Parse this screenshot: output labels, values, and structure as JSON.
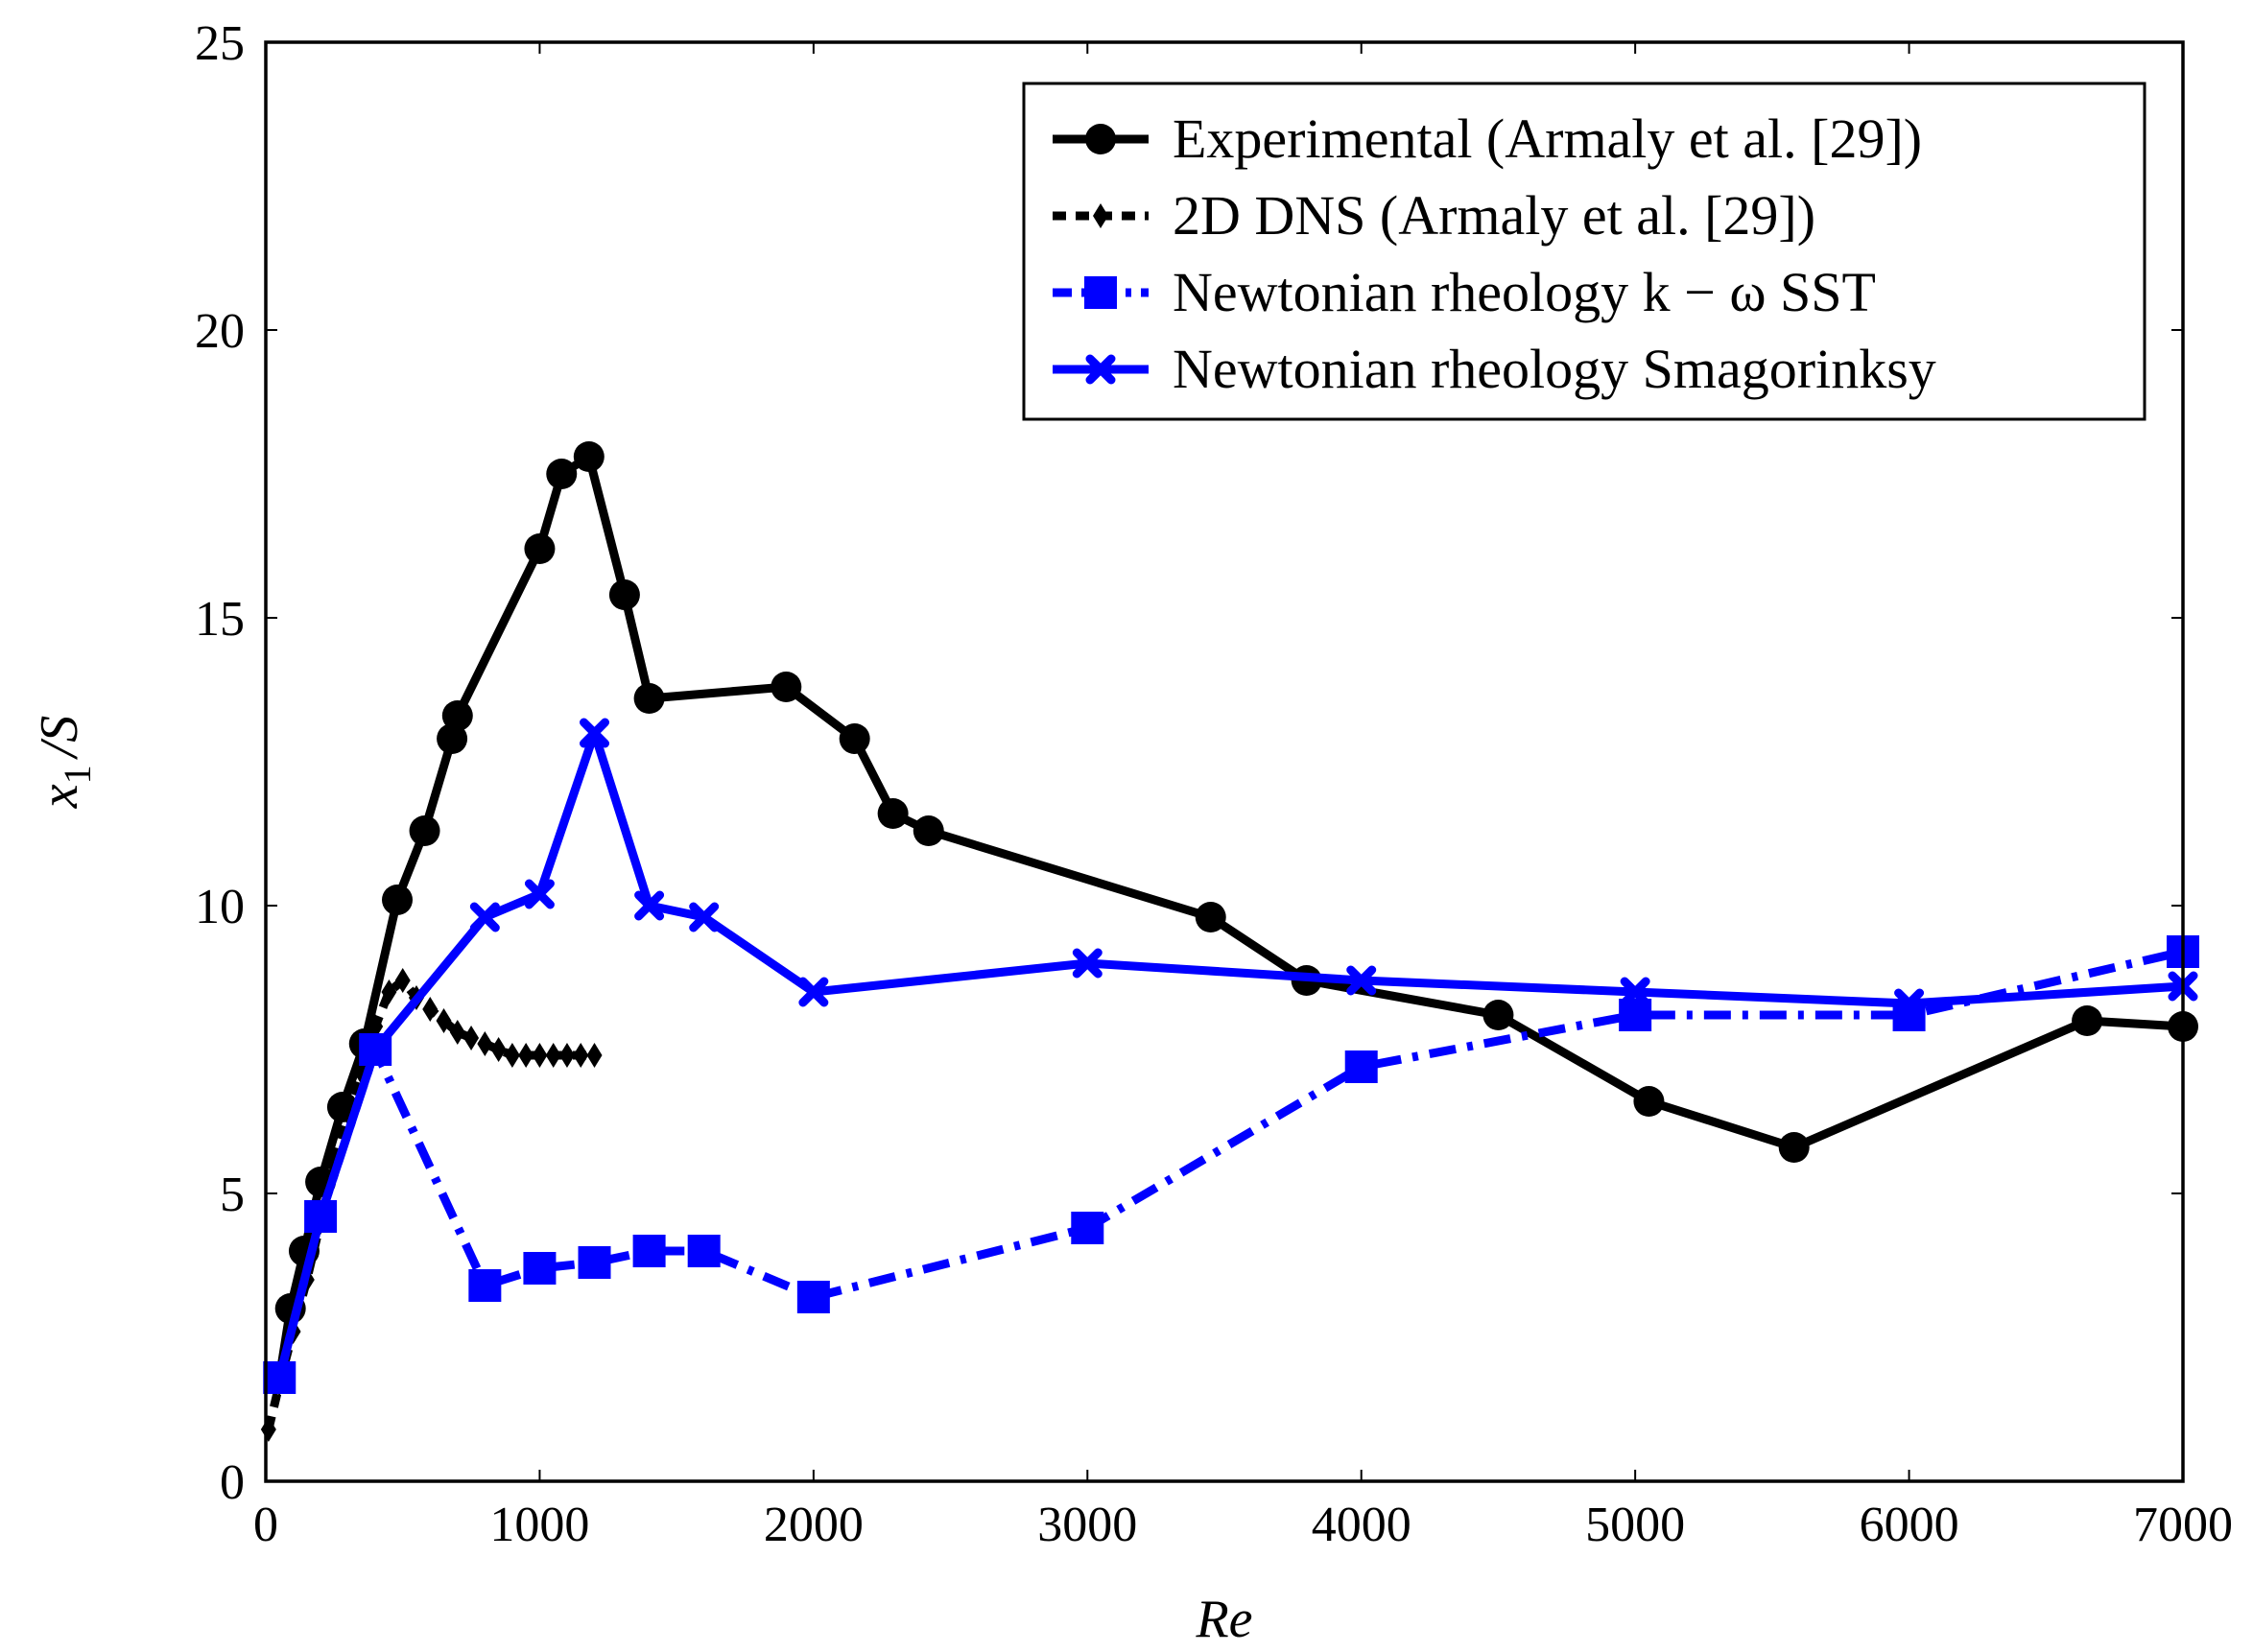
{
  "chart_data": {
    "type": "line",
    "title": "",
    "xlabel": "Re",
    "ylabel_main": "x",
    "ylabel_sub": "1",
    "ylabel_rest": "/S",
    "xlim": [
      0,
      7000
    ],
    "ylim": [
      0,
      25
    ],
    "xticks": [
      "0",
      "1000",
      "2000",
      "3000",
      "4000",
      "5000",
      "6000",
      "7000"
    ],
    "yticks": [
      "0",
      "5",
      "10",
      "15",
      "20",
      "25"
    ],
    "grid": false,
    "legend_position": "top-right",
    "series": [
      {
        "name": "Experimental (Armaly et al. [29])",
        "color": "#000000",
        "line": "solid",
        "marker": "circle",
        "x": [
          50,
          90,
          140,
          200,
          280,
          360,
          480,
          580,
          680,
          700,
          1000,
          1080,
          1180,
          1310,
          1400,
          1900,
          2150,
          2290,
          2420,
          3450,
          3800,
          4500,
          5050,
          5580,
          6650,
          7000
        ],
        "y": [
          1.8,
          3.0,
          4.0,
          5.2,
          6.5,
          7.6,
          10.1,
          11.3,
          12.9,
          13.3,
          16.2,
          17.5,
          17.8,
          15.4,
          13.6,
          13.8,
          12.9,
          11.6,
          11.3,
          9.8,
          8.7,
          8.1,
          6.6,
          5.8,
          8.0,
          7.9
        ]
      },
      {
        "name": "2D DNS (Armaly et al. [29])",
        "color": "#000000",
        "line": "dashed",
        "marker": "diamond",
        "x": [
          10,
          50,
          100,
          150,
          200,
          250,
          300,
          350,
          400,
          450,
          500,
          550,
          600,
          650,
          700,
          750,
          800,
          850,
          900,
          950,
          1000,
          1050,
          1100,
          1150,
          1200
        ],
        "y": [
          0.9,
          1.7,
          2.6,
          3.5,
          4.5,
          5.5,
          6.4,
          7.1,
          7.9,
          8.5,
          8.7,
          8.4,
          8.2,
          8.0,
          7.8,
          7.7,
          7.6,
          7.5,
          7.4,
          7.4,
          7.4,
          7.4,
          7.4,
          7.4,
          7.4
        ]
      },
      {
        "name": "Newtonian rheology k − ω SST",
        "color": "#0000ff",
        "line": "dash-dot",
        "marker": "square",
        "x": [
          50,
          200,
          400,
          800,
          1000,
          1200,
          1400,
          1600,
          2000,
          3000,
          4000,
          5000,
          6000,
          7000
        ],
        "y": [
          1.8,
          4.6,
          7.5,
          3.4,
          3.7,
          3.8,
          4.0,
          4.0,
          3.2,
          4.4,
          7.2,
          8.1,
          8.1,
          9.2
        ]
      },
      {
        "name": "Newtonian rheology Smagorinksy",
        "color": "#0000ff",
        "line": "solid",
        "marker": "cross",
        "x": [
          50,
          200,
          400,
          800,
          1000,
          1200,
          1400,
          1600,
          2000,
          3000,
          4000,
          5000,
          6000,
          7000
        ],
        "y": [
          1.8,
          4.6,
          7.5,
          9.8,
          10.2,
          13.0,
          10.0,
          9.8,
          8.5,
          9.0,
          8.7,
          8.5,
          8.3,
          8.6
        ]
      }
    ]
  }
}
